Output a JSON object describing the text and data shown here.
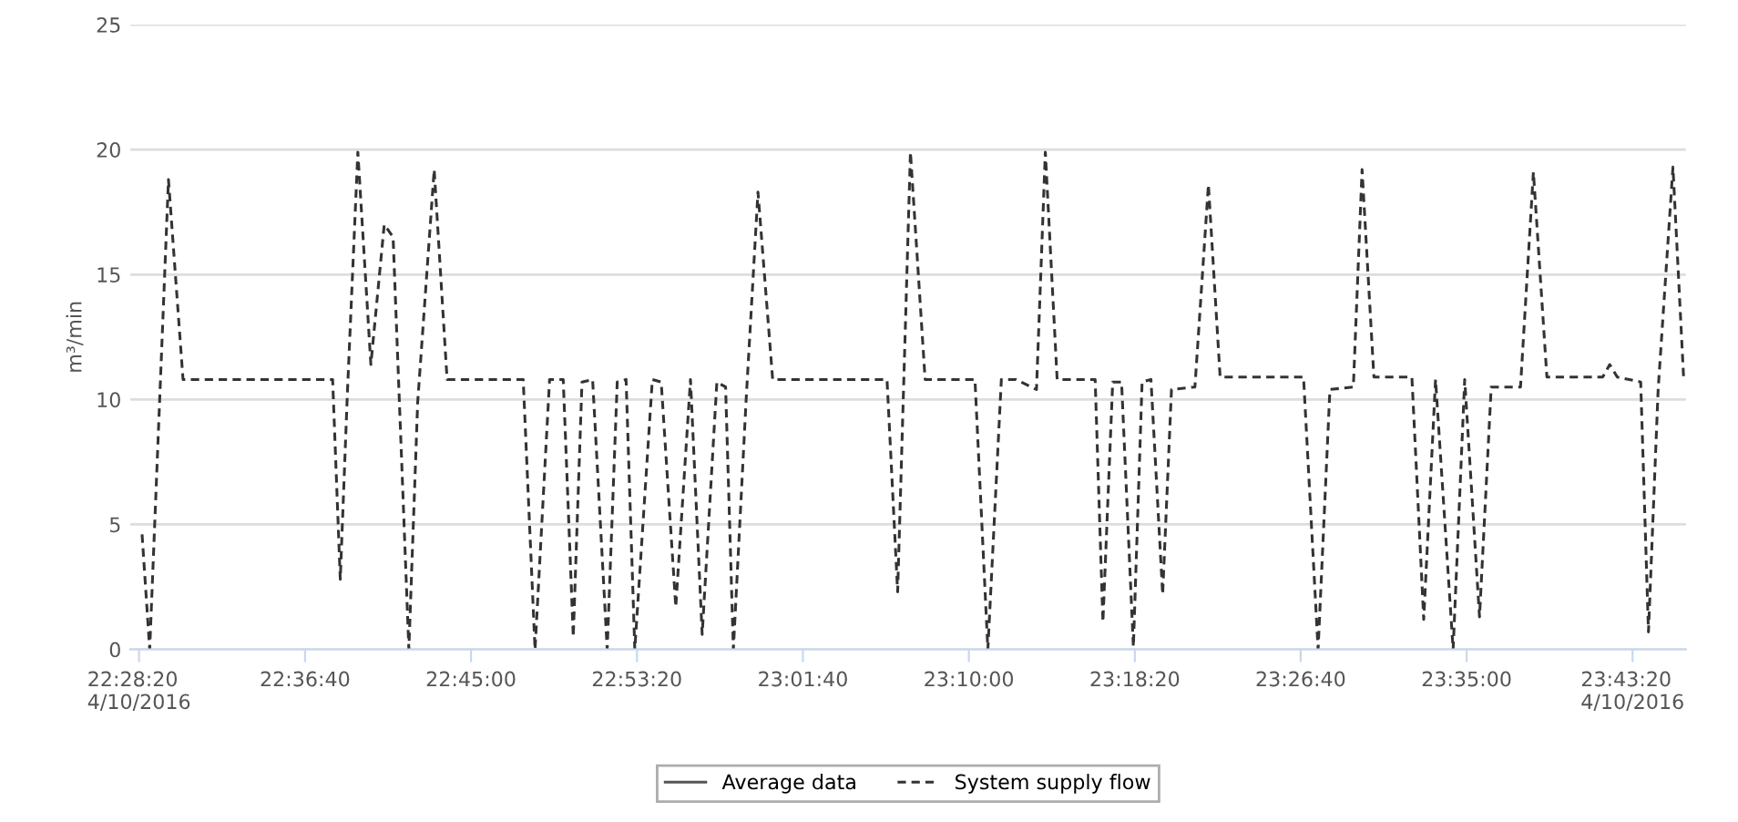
{
  "chart_data": {
    "type": "line",
    "ylabel": "m³/min",
    "xlim": [
      22.4649,
      23.7668
    ],
    "ylim": [
      0,
      25
    ],
    "yticks": [
      0,
      5,
      10,
      15,
      20,
      25
    ],
    "xticks": [
      {
        "value": 22.4722,
        "label": "22:28:20\n4/10/2016"
      },
      {
        "value": 22.6111,
        "label": "22:36:40"
      },
      {
        "value": 22.75,
        "label": "22:45:00"
      },
      {
        "value": 22.8889,
        "label": "22:53:20"
      },
      {
        "value": 23.0278,
        "label": "23:01:40"
      },
      {
        "value": 23.1667,
        "label": "23:10:00"
      },
      {
        "value": 23.3056,
        "label": "23:18:20"
      },
      {
        "value": 23.4444,
        "label": "23:26:40"
      },
      {
        "value": 23.5833,
        "label": "23:35:00"
      },
      {
        "value": 23.7222,
        "label": "23:43:20\n4/10/2016"
      }
    ],
    "grid": "y",
    "legend": "bottom",
    "series": [
      {
        "name": "Average data",
        "color": "#555555",
        "line_style": "solid"
      },
      {
        "name": "System supply flow",
        "color": "#333333",
        "line_style": "dashed",
        "x": [
          22.4747,
          22.4811,
          22.4968,
          22.509,
          22.6342,
          22.6406,
          22.6465,
          22.6553,
          22.6662,
          22.6774,
          22.6848,
          22.698,
          22.7054,
          22.7192,
          22.73,
          22.7937,
          22.8036,
          22.8158,
          22.8272,
          22.8356,
          22.8429,
          22.8518,
          22.864,
          22.8724,
          22.8798,
          22.8871,
          22.9018,
          22.9092,
          22.9214,
          22.9337,
          22.9435,
          22.9558,
          22.9631,
          22.9696,
          22.9803,
          22.9902,
          23.0025,
          23.0982,
          23.1071,
          23.1178,
          23.1301,
          23.1718,
          23.1826,
          23.1939,
          23.2061,
          23.2233,
          23.2307,
          23.2406,
          23.2724,
          23.2789,
          23.2871,
          23.2945,
          23.3044,
          23.3117,
          23.3191,
          23.3289,
          23.3363,
          23.3559,
          23.3672,
          23.377,
          23.4468,
          23.459,
          23.4689,
          23.4885,
          23.4958,
          23.5057,
          23.5375,
          23.5474,
          23.5573,
          23.572,
          23.5817,
          23.5941,
          23.6039,
          23.6284,
          23.6392,
          23.6505,
          23.6972,
          23.7031,
          23.7094,
          23.729,
          23.7355,
          23.7436,
          23.756,
          23.7649
        ],
        "values": [
          4.6,
          0,
          18.8,
          10.8,
          10.8,
          2.8,
          10.2,
          19.9,
          11.4,
          17,
          16.5,
          0,
          9.9,
          19.2,
          10.8,
          10.8,
          0,
          10.8,
          10.8,
          0.5,
          10.7,
          10.8,
          0,
          10.7,
          10.8,
          0,
          10.8,
          10.7,
          1.7,
          10.8,
          0.6,
          10.7,
          10.5,
          0,
          10,
          18.3,
          10.8,
          10.8,
          2.3,
          19.9,
          10.8,
          10.8,
          0,
          10.8,
          10.8,
          10.4,
          19.9,
          10.8,
          10.8,
          1.1,
          10.7,
          10.7,
          0.1,
          10.7,
          10.8,
          2.2,
          10.4,
          10.5,
          18.6,
          10.9,
          10.9,
          0,
          10.4,
          10.5,
          19.2,
          10.9,
          10.9,
          1.2,
          10.8,
          0,
          10.8,
          1.3,
          10.5,
          10.5,
          19.1,
          10.9,
          10.9,
          11.4,
          10.9,
          10.7,
          0.7,
          10.4,
          19.3,
          10.9
        ]
      }
    ]
  }
}
